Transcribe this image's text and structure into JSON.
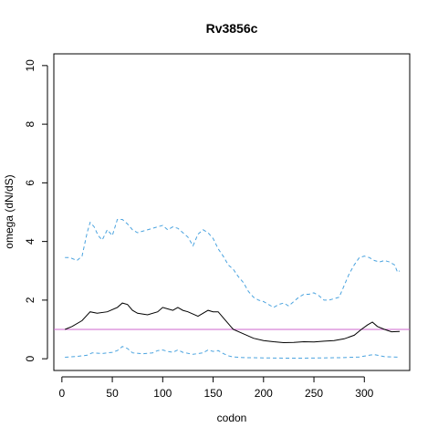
{
  "chart_data": {
    "type": "line",
    "title": "Rv3856c",
    "xlabel": "codon",
    "ylabel": "omega (dN/dS)",
    "xlim": [
      -8,
      345
    ],
    "ylim": [
      -0.4,
      10.4
    ],
    "x_ticks": [
      0,
      50,
      100,
      150,
      200,
      250,
      300
    ],
    "y_ticks": [
      0,
      2,
      4,
      6,
      8,
      10
    ],
    "x_tick_labels": [
      "0",
      "50",
      "100",
      "150",
      "200",
      "250",
      "300"
    ],
    "y_tick_labels": [
      "0",
      "2",
      "4",
      "6",
      "8",
      "10"
    ],
    "reference_line": {
      "y": 1,
      "color": "#cc66cc"
    },
    "series": [
      {
        "style": "solid",
        "color": "#000000",
        "x": [
          3,
          10,
          20,
          28,
          35,
          45,
          55,
          60,
          65,
          70,
          75,
          85,
          95,
          100,
          105,
          110,
          115,
          120,
          125,
          135,
          145,
          150,
          155,
          160,
          165,
          170,
          180,
          190,
          200,
          210,
          220,
          230,
          240,
          250,
          260,
          270,
          280,
          290,
          297,
          303,
          308,
          313,
          320,
          327,
          335
        ],
        "y": [
          1.0,
          1.1,
          1.3,
          1.6,
          1.55,
          1.6,
          1.75,
          1.9,
          1.85,
          1.65,
          1.55,
          1.5,
          1.6,
          1.75,
          1.7,
          1.65,
          1.75,
          1.65,
          1.6,
          1.45,
          1.65,
          1.6,
          1.6,
          1.4,
          1.2,
          1.0,
          0.85,
          0.7,
          0.62,
          0.58,
          0.55,
          0.56,
          0.58,
          0.57,
          0.6,
          0.62,
          0.68,
          0.8,
          1.0,
          1.15,
          1.25,
          1.1,
          1.0,
          0.92,
          0.93
        ]
      },
      {
        "style": "dashed",
        "color": "#4aa3df",
        "x": [
          3,
          8,
          15,
          20,
          25,
          28,
          32,
          36,
          40,
          45,
          50,
          55,
          60,
          65,
          70,
          75,
          80,
          90,
          95,
          100,
          105,
          110,
          115,
          120,
          125,
          130,
          135,
          140,
          145,
          150,
          155,
          160,
          165,
          170,
          175,
          180,
          185,
          190,
          195,
          200,
          205,
          210,
          215,
          220,
          225,
          230,
          235,
          240,
          245,
          250,
          255,
          260,
          265,
          270,
          275,
          280,
          285,
          290,
          295,
          300,
          305,
          310,
          315,
          320,
          325,
          330,
          333,
          335
        ],
        "y": [
          3.45,
          3.45,
          3.35,
          3.5,
          4.3,
          4.65,
          4.5,
          4.2,
          4.05,
          4.4,
          4.2,
          4.75,
          4.75,
          4.6,
          4.4,
          4.3,
          4.35,
          4.45,
          4.5,
          4.55,
          4.4,
          4.5,
          4.45,
          4.3,
          4.15,
          3.85,
          4.25,
          4.4,
          4.3,
          4.1,
          3.75,
          3.5,
          3.2,
          3.05,
          2.8,
          2.6,
          2.3,
          2.1,
          2.0,
          1.95,
          1.85,
          1.75,
          1.85,
          1.9,
          1.8,
          1.95,
          2.1,
          2.2,
          2.2,
          2.25,
          2.15,
          2.0,
          2.0,
          2.05,
          2.1,
          2.5,
          2.9,
          3.2,
          3.45,
          3.5,
          3.45,
          3.35,
          3.3,
          3.35,
          3.3,
          3.2,
          2.95,
          3.0
        ]
      },
      {
        "style": "dashed",
        "color": "#4aa3df",
        "x": [
          3,
          15,
          25,
          30,
          40,
          50,
          55,
          60,
          65,
          70,
          80,
          90,
          95,
          100,
          105,
          110,
          115,
          120,
          130,
          140,
          145,
          150,
          155,
          160,
          165,
          170,
          180,
          200,
          220,
          240,
          260,
          280,
          295,
          305,
          310,
          320,
          335
        ],
        "y": [
          0.05,
          0.08,
          0.12,
          0.2,
          0.18,
          0.22,
          0.28,
          0.42,
          0.35,
          0.2,
          0.17,
          0.2,
          0.28,
          0.3,
          0.25,
          0.22,
          0.3,
          0.22,
          0.15,
          0.2,
          0.3,
          0.25,
          0.28,
          0.18,
          0.1,
          0.06,
          0.04,
          0.03,
          0.02,
          0.02,
          0.03,
          0.04,
          0.06,
          0.12,
          0.14,
          0.07,
          0.05
        ]
      }
    ]
  }
}
